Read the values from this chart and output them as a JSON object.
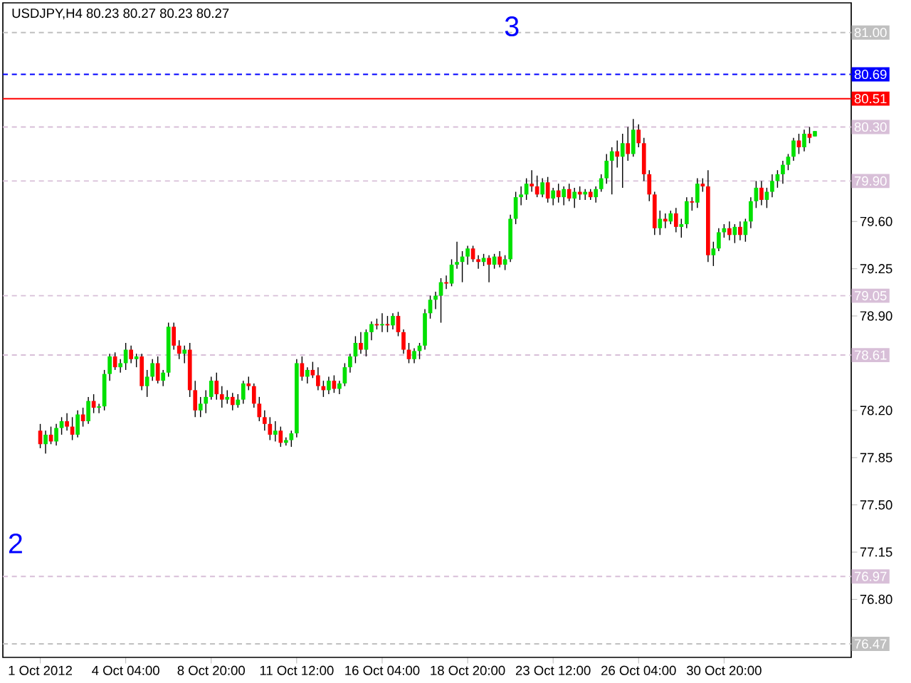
{
  "chart_data": {
    "type": "candlestick",
    "title": "USDJPY,H4  80.23 80.27 80.23 80.27",
    "annotations": [
      "3",
      "2"
    ],
    "categories": [
      "1 Oct 2012",
      null,
      null,
      null,
      null,
      null,
      null,
      null,
      null,
      null,
      null,
      null,
      null,
      null,
      null,
      null,
      "4 Oct 04:00",
      null,
      null,
      null,
      null,
      null,
      null,
      null,
      null,
      null,
      null,
      null,
      null,
      null,
      null,
      null,
      "8 Oct 20:00",
      null,
      null,
      null,
      null,
      null,
      null,
      null,
      null,
      null,
      null,
      null,
      null,
      null,
      null,
      null,
      "11 Oct 12:00",
      null,
      null,
      null,
      null,
      null,
      null,
      null,
      null,
      null,
      null,
      null,
      null,
      null,
      null,
      null,
      "16 Oct 04:00",
      null,
      null,
      null,
      null,
      null,
      null,
      null,
      null,
      null,
      null,
      null,
      null,
      null,
      null,
      null,
      "18 Oct 20:00",
      null,
      null,
      null,
      null,
      null,
      null,
      null,
      null,
      null,
      null,
      null,
      null,
      null,
      null,
      null,
      "23 Oct 12:00",
      null,
      null,
      null,
      null,
      null,
      null,
      null,
      null,
      null,
      null,
      null,
      null,
      null,
      null,
      null,
      "26 Oct 04:00",
      null,
      null,
      null,
      null,
      null,
      null,
      null,
      null,
      null,
      null,
      null,
      null,
      null,
      null,
      null,
      "30 Oct 20:00",
      null,
      null,
      null,
      null,
      null,
      null,
      null,
      null,
      null,
      null,
      null,
      null,
      null,
      null,
      null,
      null,
      null
    ],
    "ohlc": [
      [
        78.05,
        78.1,
        77.92,
        77.95
      ],
      [
        77.95,
        78.05,
        77.88,
        78.02
      ],
      [
        78.02,
        78.08,
        77.95,
        77.97
      ],
      [
        77.97,
        78.1,
        77.94,
        78.07
      ],
      [
        78.07,
        78.15,
        78.02,
        78.12
      ],
      [
        78.12,
        78.18,
        78.05,
        78.08
      ],
      [
        78.08,
        78.15,
        77.98,
        78.02
      ],
      [
        78.02,
        78.2,
        78.0,
        78.17
      ],
      [
        78.17,
        78.22,
        78.08,
        78.12
      ],
      [
        78.12,
        78.3,
        78.1,
        78.27
      ],
      [
        78.27,
        78.32,
        78.18,
        78.22
      ],
      [
        78.22,
        78.25,
        78.18,
        78.23
      ],
      [
        78.23,
        78.5,
        78.2,
        78.47
      ],
      [
        78.47,
        78.62,
        78.42,
        78.6
      ],
      [
        78.6,
        78.63,
        78.5,
        78.52
      ],
      [
        78.52,
        78.58,
        78.48,
        78.55
      ],
      [
        78.55,
        78.7,
        78.5,
        78.65
      ],
      [
        78.65,
        78.68,
        78.55,
        78.58
      ],
      [
        78.58,
        78.62,
        78.52,
        78.6
      ],
      [
        78.6,
        78.62,
        78.35,
        78.38
      ],
      [
        78.38,
        78.5,
        78.3,
        78.45
      ],
      [
        78.45,
        78.58,
        78.42,
        78.55
      ],
      [
        78.55,
        78.6,
        78.4,
        78.42
      ],
      [
        78.42,
        78.5,
        78.38,
        78.48
      ],
      [
        78.48,
        78.85,
        78.45,
        78.82
      ],
      [
        78.82,
        78.85,
        78.65,
        78.68
      ],
      [
        78.68,
        78.72,
        78.58,
        78.62
      ],
      [
        78.62,
        78.68,
        78.55,
        78.65
      ],
      [
        78.65,
        78.7,
        78.3,
        78.35
      ],
      [
        78.35,
        78.42,
        78.15,
        78.2
      ],
      [
        78.2,
        78.3,
        78.15,
        78.25
      ],
      [
        78.25,
        78.35,
        78.18,
        78.3
      ],
      [
        78.3,
        78.45,
        78.28,
        78.42
      ],
      [
        78.42,
        78.48,
        78.28,
        78.32
      ],
      [
        78.32,
        78.38,
        78.22,
        78.28
      ],
      [
        78.28,
        78.35,
        78.25,
        78.3
      ],
      [
        78.3,
        78.33,
        78.2,
        78.24
      ],
      [
        78.24,
        78.32,
        78.22,
        78.28
      ],
      [
        78.28,
        78.42,
        78.25,
        78.4
      ],
      [
        78.4,
        78.45,
        78.35,
        78.38
      ],
      [
        78.38,
        78.4,
        78.22,
        78.25
      ],
      [
        78.25,
        78.3,
        78.12,
        78.15
      ],
      [
        78.15,
        78.2,
        78.05,
        78.1
      ],
      [
        78.1,
        78.15,
        77.98,
        78.02
      ],
      [
        78.02,
        78.12,
        77.97,
        78.05
      ],
      [
        78.05,
        78.08,
        77.93,
        77.96
      ],
      [
        77.96,
        78.0,
        77.94,
        77.98
      ],
      [
        77.98,
        78.05,
        77.93,
        78.03
      ],
      [
        78.03,
        78.58,
        78.0,
        78.55
      ],
      [
        78.55,
        78.6,
        78.42,
        78.45
      ],
      [
        78.45,
        78.52,
        78.4,
        78.5
      ],
      [
        78.5,
        78.56,
        78.44,
        78.46
      ],
      [
        78.46,
        78.52,
        78.35,
        78.38
      ],
      [
        78.38,
        78.42,
        78.3,
        78.35
      ],
      [
        78.35,
        78.45,
        78.32,
        78.42
      ],
      [
        78.42,
        78.46,
        78.33,
        78.36
      ],
      [
        78.36,
        78.42,
        78.32,
        78.4
      ],
      [
        78.4,
        78.55,
        78.38,
        78.52
      ],
      [
        78.52,
        78.62,
        78.48,
        78.6
      ],
      [
        78.6,
        78.75,
        78.55,
        78.7
      ],
      [
        78.7,
        78.78,
        78.62,
        78.65
      ],
      [
        78.65,
        78.8,
        78.6,
        78.78
      ],
      [
        78.78,
        78.86,
        78.72,
        78.84
      ],
      [
        78.84,
        78.88,
        78.8,
        78.83
      ],
      [
        78.83,
        78.92,
        78.78,
        78.84
      ],
      [
        78.84,
        78.9,
        78.78,
        78.83
      ],
      [
        78.83,
        78.92,
        78.8,
        78.9
      ],
      [
        78.9,
        78.93,
        78.75,
        78.78
      ],
      [
        78.78,
        78.8,
        78.62,
        78.65
      ],
      [
        78.65,
        78.7,
        78.55,
        78.58
      ],
      [
        78.58,
        78.66,
        78.55,
        78.64
      ],
      [
        78.64,
        78.7,
        78.58,
        78.68
      ],
      [
        78.68,
        78.95,
        78.65,
        78.92
      ],
      [
        78.92,
        79.05,
        78.88,
        79.02
      ],
      [
        79.02,
        79.08,
        78.95,
        79.05
      ],
      [
        79.05,
        79.18,
        78.85,
        79.15
      ],
      [
        79.15,
        79.2,
        79.1,
        79.14
      ],
      [
        79.14,
        79.32,
        79.12,
        79.28
      ],
      [
        79.28,
        79.45,
        79.25,
        79.3
      ],
      [
        79.3,
        79.38,
        79.15,
        79.34
      ],
      [
        79.34,
        79.42,
        79.28,
        79.4
      ],
      [
        79.4,
        79.42,
        79.3,
        79.32
      ],
      [
        79.32,
        79.35,
        79.25,
        79.3
      ],
      [
        79.3,
        79.36,
        79.27,
        79.33
      ],
      [
        79.33,
        79.35,
        79.15,
        79.28
      ],
      [
        79.28,
        79.36,
        79.25,
        79.34
      ],
      [
        79.34,
        79.38,
        79.26,
        79.28
      ],
      [
        79.28,
        79.35,
        79.24,
        79.32
      ],
      [
        79.32,
        79.65,
        79.3,
        79.62
      ],
      [
        79.62,
        79.82,
        79.58,
        79.78
      ],
      [
        79.78,
        79.86,
        79.72,
        79.8
      ],
      [
        79.8,
        79.92,
        79.76,
        79.88
      ],
      [
        79.88,
        79.98,
        79.82,
        79.86
      ],
      [
        79.86,
        79.94,
        79.78,
        79.8
      ],
      [
        79.8,
        79.92,
        79.78,
        79.89
      ],
      [
        79.89,
        79.93,
        79.74,
        79.77
      ],
      [
        79.77,
        79.85,
        79.72,
        79.83
      ],
      [
        79.83,
        79.88,
        79.74,
        79.78
      ],
      [
        79.78,
        79.86,
        79.72,
        79.84
      ],
      [
        79.84,
        79.88,
        79.75,
        79.77
      ],
      [
        79.77,
        79.85,
        79.7,
        79.82
      ],
      [
        79.82,
        79.86,
        79.76,
        79.8
      ],
      [
        79.8,
        79.84,
        79.76,
        79.82
      ],
      [
        79.82,
        79.84,
        79.76,
        79.78
      ],
      [
        79.78,
        79.86,
        79.74,
        79.84
      ],
      [
        79.84,
        79.95,
        79.82,
        79.92
      ],
      [
        79.92,
        80.1,
        79.88,
        80.05
      ],
      [
        80.05,
        80.15,
        79.8,
        80.12
      ],
      [
        80.12,
        80.2,
        80.0,
        80.08
      ],
      [
        80.08,
        80.25,
        79.85,
        80.18
      ],
      [
        80.18,
        80.3,
        80.05,
        80.1
      ],
      [
        80.1,
        80.36,
        80.08,
        80.28
      ],
      [
        80.28,
        80.32,
        80.15,
        80.18
      ],
      [
        80.18,
        80.22,
        79.9,
        79.95
      ],
      [
        79.95,
        79.98,
        79.75,
        79.8
      ],
      [
        79.8,
        79.82,
        79.5,
        79.55
      ],
      [
        79.55,
        79.68,
        79.5,
        79.62
      ],
      [
        79.62,
        79.66,
        79.55,
        79.6
      ],
      [
        79.6,
        79.68,
        79.58,
        79.66
      ],
      [
        79.66,
        79.7,
        79.52,
        79.56
      ],
      [
        79.56,
        79.62,
        79.48,
        79.58
      ],
      [
        79.58,
        79.78,
        79.55,
        79.75
      ],
      [
        79.75,
        79.78,
        79.68,
        79.74
      ],
      [
        79.74,
        79.92,
        79.7,
        79.88
      ],
      [
        79.88,
        79.92,
        79.82,
        79.86
      ],
      [
        79.86,
        79.98,
        79.3,
        79.35
      ],
      [
        79.35,
        79.45,
        79.27,
        79.4
      ],
      [
        79.4,
        79.55,
        79.38,
        79.52
      ],
      [
        79.52,
        79.58,
        79.48,
        79.55
      ],
      [
        79.55,
        79.6,
        79.46,
        79.5
      ],
      [
        79.5,
        79.58,
        79.44,
        79.56
      ],
      [
        79.56,
        79.6,
        79.46,
        79.5
      ],
      [
        79.5,
        79.62,
        79.45,
        79.6
      ],
      [
        79.6,
        79.78,
        79.55,
        79.75
      ],
      [
        79.75,
        79.9,
        79.7,
        79.85
      ],
      [
        79.85,
        79.9,
        79.72,
        79.76
      ],
      [
        79.76,
        79.85,
        79.7,
        79.82
      ],
      [
        79.82,
        79.95,
        79.78,
        79.9
      ],
      [
        79.9,
        79.98,
        79.85,
        79.95
      ],
      [
        79.95,
        80.05,
        79.88,
        80.02
      ],
      [
        80.02,
        80.1,
        79.98,
        80.08
      ],
      [
        80.08,
        80.22,
        80.05,
        80.2
      ],
      [
        80.2,
        80.25,
        80.1,
        80.15
      ],
      [
        80.15,
        80.28,
        80.12,
        80.25
      ],
      [
        80.25,
        80.3,
        80.18,
        80.22
      ],
      [
        80.23,
        80.27,
        80.23,
        80.27
      ]
    ],
    "ylim": [
      76.37,
      81.22
    ],
    "yticks": [
      {
        "value": 79.6,
        "label": "79.60"
      },
      79.25,
      {
        "value": 78.9,
        "label": "78.90"
      },
      {
        "value": 78.2,
        "label": "78.20"
      },
      77.85,
      {
        "value": 77.5,
        "label": "77.50"
      },
      77.15,
      {
        "value": 76.8,
        "label": "76.80"
      }
    ],
    "ref_lines": [
      {
        "axis": "y",
        "value": 81.0,
        "label": "81.00",
        "color": "#c0c0c0",
        "line_style": "dashed"
      },
      {
        "axis": "y",
        "value": 80.69,
        "label": "80.69",
        "color": "#0000ff",
        "line_style": "dashed"
      },
      {
        "axis": "y",
        "value": 80.51,
        "label": "80.51",
        "color": "#ff0000",
        "line_style": "solid"
      },
      {
        "axis": "y",
        "value": 80.3,
        "label": "80.30",
        "color": "#d8bfd8",
        "line_style": "dashed"
      },
      {
        "axis": "y",
        "value": 79.9,
        "label": "79.90",
        "color": "#d8bfd8",
        "line_style": "dashed"
      },
      {
        "axis": "y",
        "value": 79.05,
        "label": "79.05",
        "color": "#d8bfd8",
        "line_style": "dashed"
      },
      {
        "axis": "y",
        "value": 78.61,
        "label": "78.61",
        "color": "#d8bfd8",
        "line_style": "dashed"
      },
      {
        "axis": "y",
        "value": 76.97,
        "label": "76.97",
        "color": "#d8bfd8",
        "line_style": "dashed"
      },
      {
        "axis": "y",
        "value": 76.47,
        "label": "76.47",
        "color": "#c0c0c0",
        "line_style": "dashed"
      }
    ],
    "grid": false
  }
}
